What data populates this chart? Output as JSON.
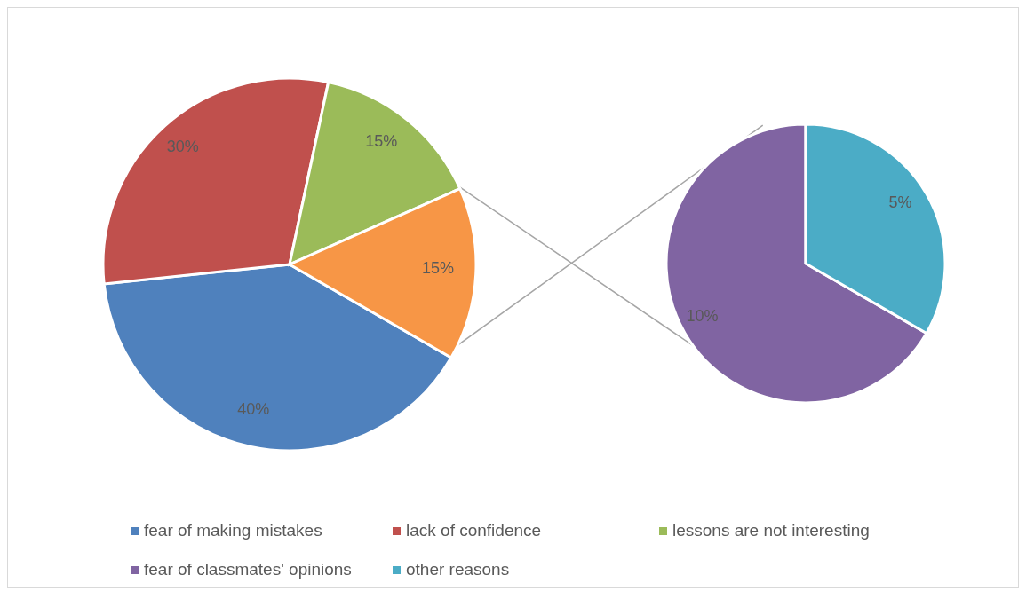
{
  "chart_data": [
    {
      "type": "pie",
      "categories": [
        "fear of making mistakes",
        "lack of confidence",
        "lessons are not interesting",
        null
      ],
      "values": [
        40,
        30,
        15,
        15
      ],
      "colors": [
        "#4f81bd",
        "#c0504d",
        "#9bbb59",
        "#f79646"
      ],
      "value_labels": [
        "40%",
        "30%",
        "15%",
        "15%"
      ],
      "legend": "bottom"
    },
    {
      "type": "pie",
      "categories": [
        "fear of classmates' opinions",
        "other reasons"
      ],
      "values": [
        10,
        5
      ],
      "colors": [
        "#8064a2",
        "#4bacc6"
      ],
      "value_labels": [
        "10%",
        "5%"
      ],
      "legend": "bottom"
    }
  ]
}
